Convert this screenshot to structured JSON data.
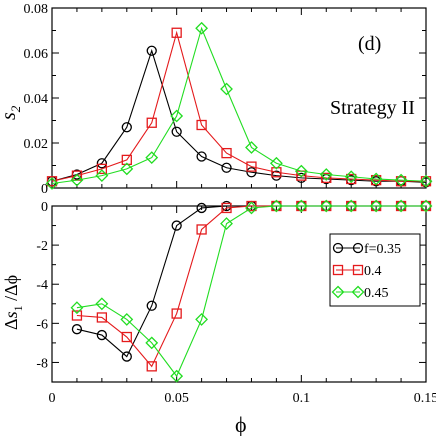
{
  "panel_label": "(d)",
  "strategy_label": "Strategy II",
  "colors": {
    "f0.35": "#000000",
    "f0.4": "#e41a1c",
    "f0.45": "#22dd22",
    "axis": "#000000"
  },
  "chart_data": [
    {
      "type": "line",
      "panel": "top",
      "ylabel": "s_2",
      "xlim": [
        0,
        0.15
      ],
      "ylim": [
        0,
        0.08
      ],
      "x_ticks": [
        "0",
        "0.05",
        "0.1",
        "0.15"
      ],
      "y_ticks": [
        "0",
        "0.02",
        "0.04",
        "0.06",
        "0.08"
      ],
      "grid": false,
      "series": [
        {
          "name": "f=0.35",
          "marker": "circle",
          "color": "#000000",
          "points": [
            [
              0.0,
              0.003
            ],
            [
              0.01,
              0.006
            ],
            [
              0.02,
              0.011
            ],
            [
              0.03,
              0.027
            ],
            [
              0.04,
              0.061
            ],
            [
              0.05,
              0.025
            ],
            [
              0.06,
              0.014
            ],
            [
              0.07,
              0.009
            ],
            [
              0.08,
              0.007
            ],
            [
              0.09,
              0.0055
            ],
            [
              0.1,
              0.0045
            ],
            [
              0.11,
              0.004
            ],
            [
              0.12,
              0.0035
            ],
            [
              0.13,
              0.003
            ],
            [
              0.14,
              0.003
            ],
            [
              0.15,
              0.0025
            ]
          ]
        },
        {
          "name": "0.4",
          "marker": "square",
          "color": "#e41a1c",
          "points": [
            [
              0.0,
              0.003
            ],
            [
              0.01,
              0.0055
            ],
            [
              0.02,
              0.0085
            ],
            [
              0.03,
              0.0125
            ],
            [
              0.04,
              0.029
            ],
            [
              0.05,
              0.069
            ],
            [
              0.06,
              0.028
            ],
            [
              0.07,
              0.0155
            ],
            [
              0.08,
              0.0095
            ],
            [
              0.09,
              0.007
            ],
            [
              0.1,
              0.0055
            ],
            [
              0.11,
              0.0045
            ],
            [
              0.12,
              0.004
            ],
            [
              0.13,
              0.0035
            ],
            [
              0.14,
              0.003
            ],
            [
              0.15,
              0.003
            ]
          ]
        },
        {
          "name": "0.45",
          "marker": "diamond",
          "color": "#22dd22",
          "points": [
            [
              0.0,
              0.002
            ],
            [
              0.01,
              0.0035
            ],
            [
              0.02,
              0.0055
            ],
            [
              0.03,
              0.0085
            ],
            [
              0.04,
              0.0135
            ],
            [
              0.05,
              0.032
            ],
            [
              0.06,
              0.071
            ],
            [
              0.07,
              0.044
            ],
            [
              0.08,
              0.018
            ],
            [
              0.09,
              0.011
            ],
            [
              0.1,
              0.0075
            ],
            [
              0.11,
              0.006
            ],
            [
              0.12,
              0.005
            ],
            [
              0.13,
              0.004
            ],
            [
              0.14,
              0.0035
            ],
            [
              0.15,
              0.003
            ]
          ]
        }
      ]
    },
    {
      "type": "line",
      "panel": "bottom",
      "xlabel": "ϕ",
      "ylabel": "Δs_1 /Δϕ",
      "xlim": [
        0,
        0.15
      ],
      "ylim": [
        -9,
        0
      ],
      "x_ticks": [
        "0",
        "0.05",
        "0.1",
        "0.15"
      ],
      "y_ticks": [
        "0",
        "-2",
        "-4",
        "-6",
        "-8"
      ],
      "grid": false,
      "legend_position": "right",
      "series": [
        {
          "name": "f=0.35",
          "marker": "circle",
          "color": "#000000",
          "points": [
            [
              0.01,
              -6.3
            ],
            [
              0.02,
              -6.6
            ],
            [
              0.03,
              -7.7
            ],
            [
              0.04,
              -5.1
            ],
            [
              0.05,
              -1.0
            ],
            [
              0.06,
              -0.1
            ],
            [
              0.07,
              0.0
            ],
            [
              0.08,
              0.0
            ],
            [
              0.09,
              0.0
            ],
            [
              0.1,
              0.0
            ],
            [
              0.11,
              0.0
            ],
            [
              0.12,
              0.0
            ],
            [
              0.13,
              0.0
            ],
            [
              0.14,
              0.0
            ],
            [
              0.15,
              0.0
            ]
          ]
        },
        {
          "name": "0.4",
          "marker": "square",
          "color": "#e41a1c",
          "points": [
            [
              0.01,
              -5.6
            ],
            [
              0.02,
              -5.7
            ],
            [
              0.03,
              -6.7
            ],
            [
              0.04,
              -8.2
            ],
            [
              0.05,
              -5.5
            ],
            [
              0.06,
              -1.2
            ],
            [
              0.07,
              -0.1
            ],
            [
              0.08,
              0.0
            ],
            [
              0.09,
              0.0
            ],
            [
              0.1,
              0.0
            ],
            [
              0.11,
              0.0
            ],
            [
              0.12,
              0.0
            ],
            [
              0.13,
              0.0
            ],
            [
              0.14,
              0.0
            ],
            [
              0.15,
              0.0
            ]
          ]
        },
        {
          "name": "0.45",
          "marker": "diamond",
          "color": "#22dd22",
          "points": [
            [
              0.01,
              -5.2
            ],
            [
              0.02,
              -5.0
            ],
            [
              0.03,
              -5.8
            ],
            [
              0.04,
              -7.0
            ],
            [
              0.05,
              -8.7
            ],
            [
              0.06,
              -5.8
            ],
            [
              0.07,
              -0.9
            ],
            [
              0.08,
              -0.1
            ],
            [
              0.09,
              0.0
            ],
            [
              0.1,
              0.0
            ],
            [
              0.11,
              0.0
            ],
            [
              0.12,
              0.0
            ],
            [
              0.13,
              0.0
            ],
            [
              0.14,
              0.0
            ],
            [
              0.15,
              0.0
            ]
          ]
        }
      ]
    }
  ]
}
